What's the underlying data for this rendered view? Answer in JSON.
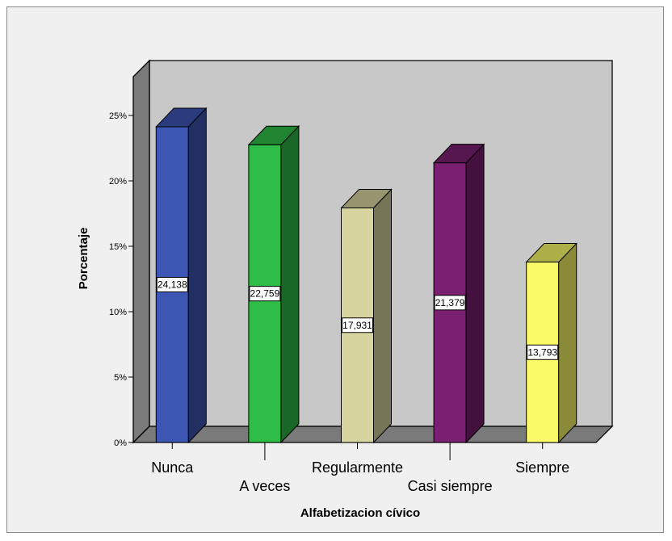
{
  "chart_data": {
    "type": "bar",
    "style": "3d",
    "categories": [
      "Nunca",
      "A veces",
      "Regularmente",
      "Casi siempre",
      "Siempre"
    ],
    "values": [
      24.138,
      22.759,
      17.931,
      21.379,
      13.793
    ],
    "data_labels": [
      "24,138",
      "22,759",
      "17,931",
      "21,379",
      "13,793"
    ],
    "title": "",
    "xlabel": "Alfabetizacion cívico",
    "ylabel": "Porcentaje",
    "ylim": [
      0,
      25
    ],
    "yticks": [
      0,
      5,
      10,
      15,
      20,
      25
    ],
    "ytick_labels": [
      "0%",
      "5%",
      "10%",
      "15%",
      "20%",
      "25%"
    ],
    "grid": false,
    "legend": "none",
    "colors": {
      "Nunca": "#3c56b4",
      "A veces": "#2ebd46",
      "Regularmente": "#d8d4a0",
      "Casi siempre": "#7b1f72",
      "Siempre": "#fafa68",
      "wall": "#c8c8c8",
      "floor": "#7a7a7a"
    }
  }
}
